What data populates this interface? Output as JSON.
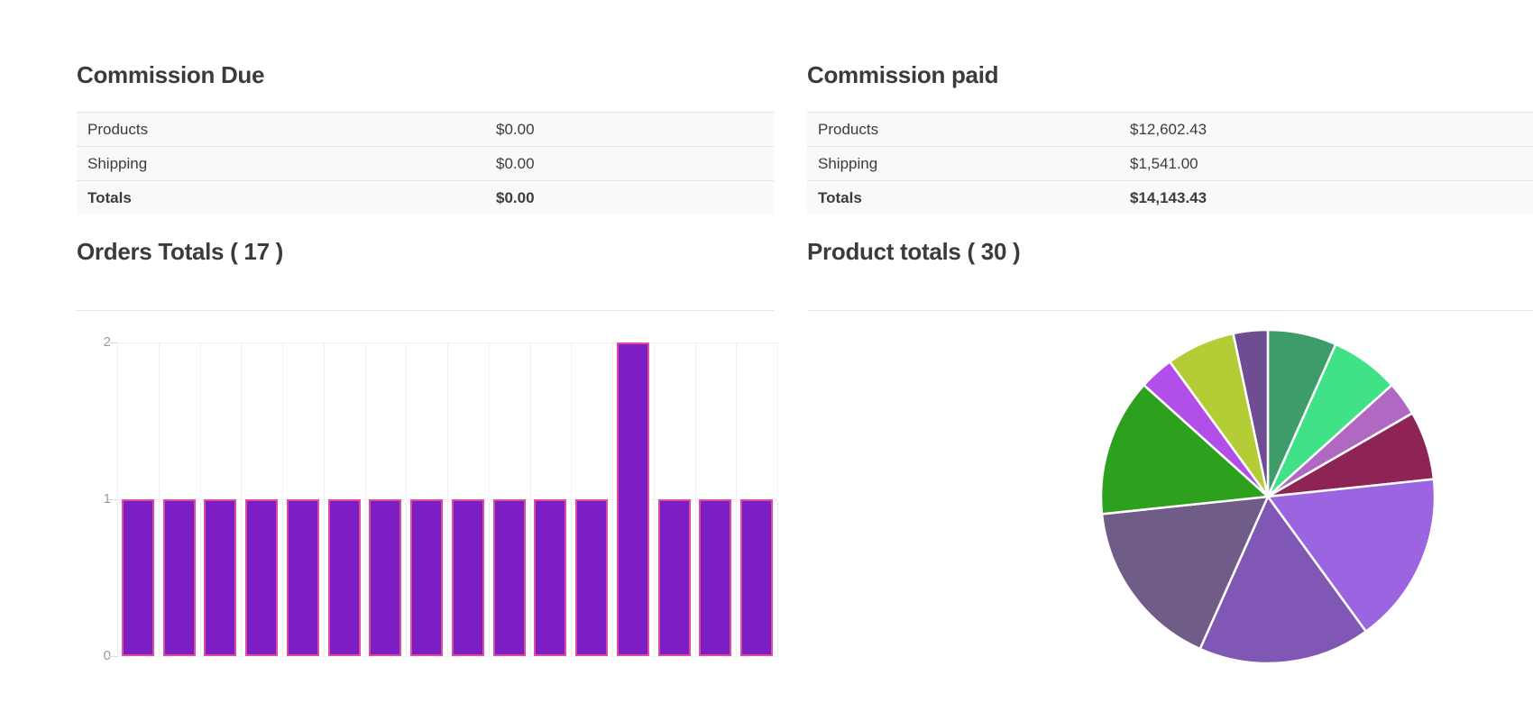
{
  "theme": {
    "heading_color": "#3b3b3b",
    "text_color": "#3c3c3c",
    "row_bg": "#f9f9f9",
    "row_border": "#e2e2e2",
    "divider_color": "#e5e5e5"
  },
  "commission_due": {
    "title": "Commission Due",
    "rows": [
      {
        "label": "Products",
        "value": "$0.00",
        "bold": false
      },
      {
        "label": "Shipping",
        "value": "$0.00",
        "bold": false
      },
      {
        "label": "Totals",
        "value": "$0.00",
        "bold": true
      }
    ]
  },
  "commission_paid": {
    "title": "Commission paid",
    "rows": [
      {
        "label": "Products",
        "value": "$12,602.43",
        "bold": false
      },
      {
        "label": "Shipping",
        "value": "$1,541.00",
        "bold": false
      },
      {
        "label": "Totals",
        "value": "$14,143.43",
        "bold": true
      }
    ]
  },
  "chart_data": [
    {
      "type": "bar",
      "title": "Orders Totals ( 17 )",
      "orders_count": 17,
      "values": [
        1,
        1,
        1,
        1,
        1,
        1,
        1,
        1,
        1,
        1,
        1,
        1,
        2,
        1,
        1,
        1
      ],
      "x_tick_labels": [],
      "xlabel": "",
      "ylabel": "",
      "ylim": [
        0,
        2
      ],
      "yticks": [
        0,
        1,
        2
      ],
      "grid": true,
      "legend": false,
      "bar_fill": "#7D1EC4",
      "bar_stroke": "#DD4D9F",
      "grid_color": "#f1f1f1",
      "tick_color": "#d9d9d9",
      "axis_label_color": "#9a9a9a"
    },
    {
      "type": "pie",
      "title": "Product totals ( 30 )",
      "products_count": 30,
      "start_angle_deg": 0,
      "direction": "clockwise-from-top",
      "slice_border_color": "#ffffff",
      "legend": false,
      "slices": [
        {
          "value": 2,
          "color": "#3E9C6A"
        },
        {
          "value": 2,
          "color": "#41E287"
        },
        {
          "value": 1,
          "color": "#B168C2"
        },
        {
          "value": 2,
          "color": "#8E2355"
        },
        {
          "value": 5,
          "color": "#9B64E0"
        },
        {
          "value": 5,
          "color": "#8157B5"
        },
        {
          "value": 5,
          "color": "#6F5D88"
        },
        {
          "value": 4,
          "color": "#2DA11D"
        },
        {
          "value": 1,
          "color": "#B14FE8"
        },
        {
          "value": 2,
          "color": "#B4CC35"
        },
        {
          "value": 1,
          "color": "#6E4D92"
        }
      ]
    }
  ]
}
